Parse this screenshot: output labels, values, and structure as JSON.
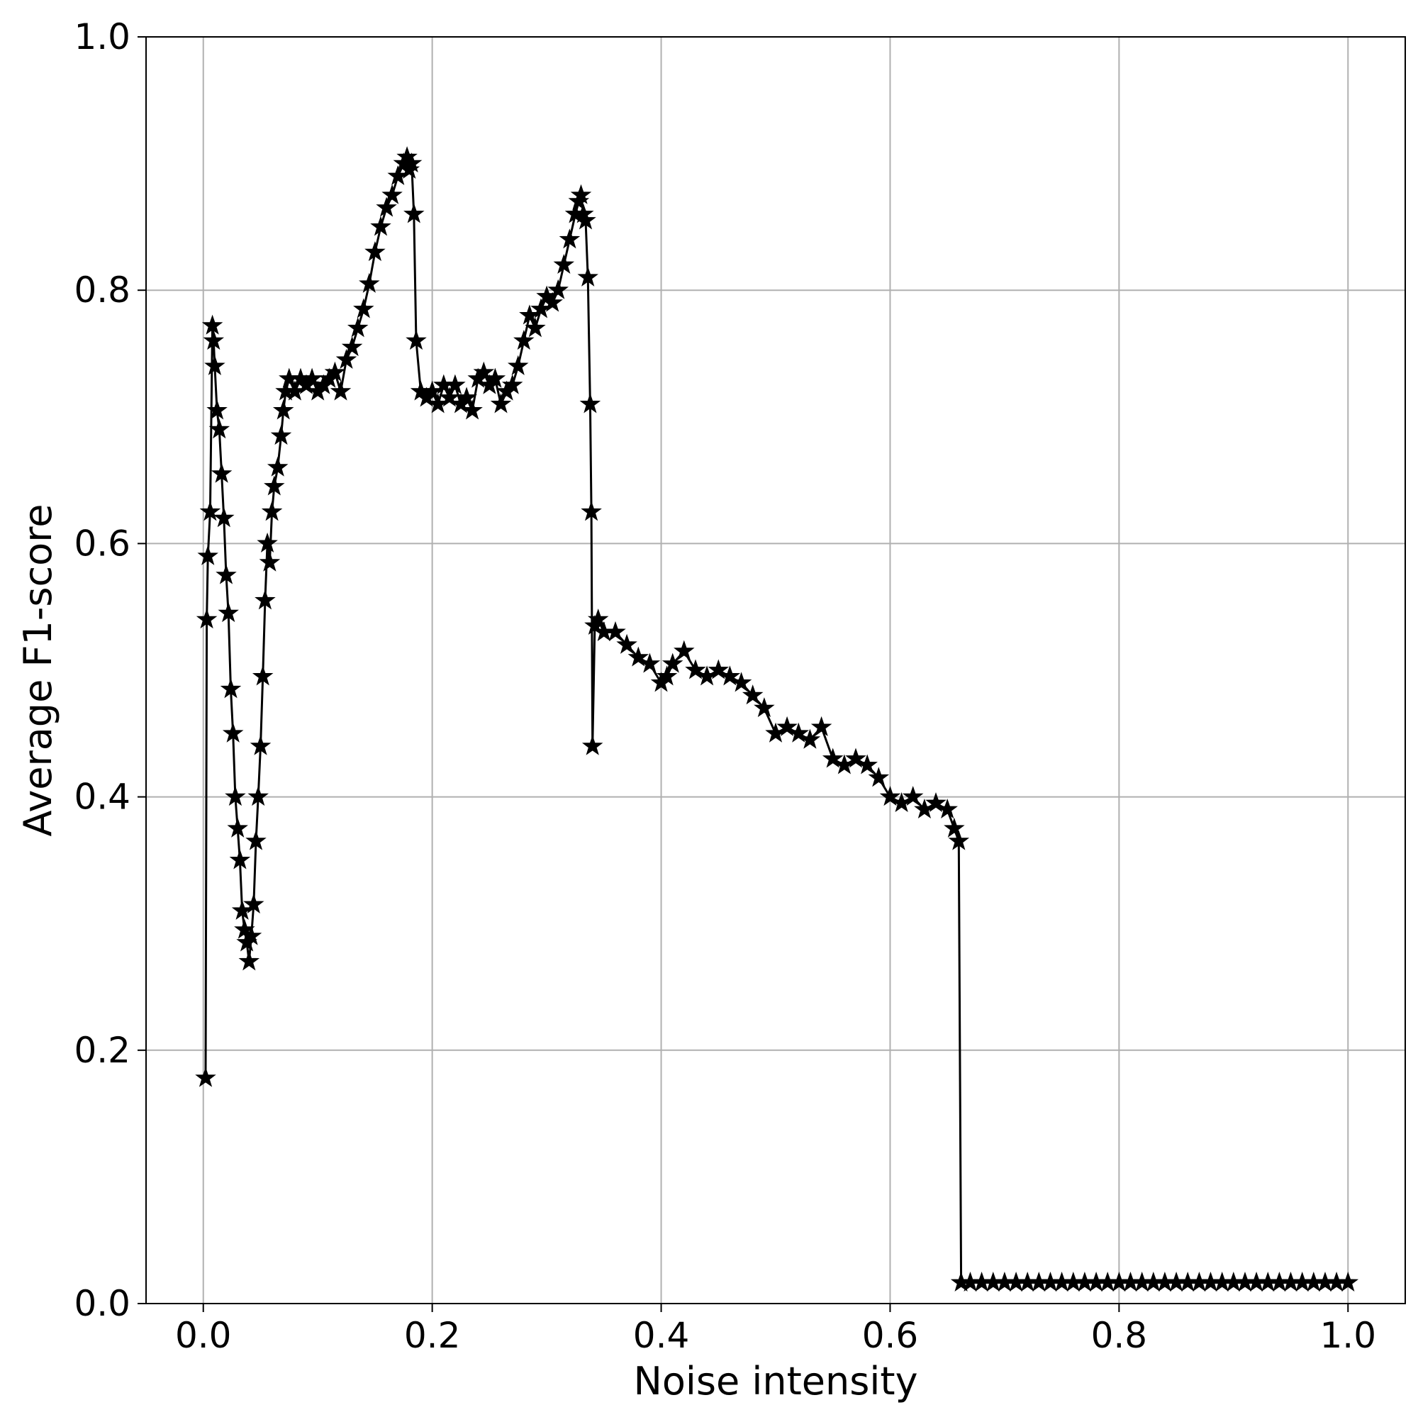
{
  "chart_data": {
    "type": "line",
    "title": "",
    "xlabel": "Noise intensity",
    "ylabel": "Average F1-score",
    "xlim": [
      -0.05,
      1.05
    ],
    "ylim": [
      0.0,
      1.0
    ],
    "grid": true,
    "legend": "none",
    "marker": "star",
    "line_color": "#000000",
    "grid_color": "#b0b0b0",
    "x_ticks": [
      0.0,
      0.2,
      0.4,
      0.6,
      0.8,
      1.0
    ],
    "x_tick_labels": [
      "0.0",
      "0.2",
      "0.4",
      "0.6",
      "0.8",
      "1.0"
    ],
    "y_ticks": [
      0.0,
      0.2,
      0.4,
      0.6,
      0.8,
      1.0
    ],
    "y_tick_labels": [
      "0.0",
      "0.2",
      "0.4",
      "0.6",
      "0.8",
      "1.0"
    ],
    "series": [
      {
        "x": [
          0.002,
          0.003,
          0.004,
          0.006,
          0.008,
          0.009,
          0.01,
          0.012,
          0.014,
          0.016,
          0.018,
          0.02,
          0.022,
          0.024,
          0.026,
          0.028,
          0.03,
          0.032,
          0.034,
          0.036,
          0.038,
          0.04,
          0.042,
          0.044,
          0.046,
          0.048,
          0.05,
          0.052,
          0.054,
          0.056,
          0.058,
          0.06,
          0.062,
          0.065,
          0.068,
          0.07,
          0.072,
          0.075,
          0.08,
          0.085,
          0.09,
          0.095,
          0.1,
          0.105,
          0.11,
          0.115,
          0.12,
          0.125,
          0.13,
          0.135,
          0.14,
          0.145,
          0.15,
          0.155,
          0.16,
          0.165,
          0.17,
          0.175,
          0.178,
          0.18,
          0.182,
          0.184,
          0.186,
          0.19,
          0.195,
          0.2,
          0.205,
          0.21,
          0.215,
          0.22,
          0.225,
          0.23,
          0.235,
          0.24,
          0.245,
          0.25,
          0.255,
          0.26,
          0.265,
          0.27,
          0.275,
          0.28,
          0.285,
          0.29,
          0.295,
          0.3,
          0.305,
          0.31,
          0.315,
          0.32,
          0.325,
          0.328,
          0.33,
          0.332,
          0.334,
          0.336,
          0.338,
          0.339,
          0.34,
          0.342,
          0.345,
          0.35,
          0.36,
          0.37,
          0.38,
          0.39,
          0.4,
          0.405,
          0.41,
          0.42,
          0.43,
          0.44,
          0.45,
          0.46,
          0.47,
          0.48,
          0.49,
          0.5,
          0.51,
          0.52,
          0.53,
          0.54,
          0.55,
          0.56,
          0.57,
          0.58,
          0.59,
          0.6,
          0.61,
          0.62,
          0.63,
          0.64,
          0.65,
          0.656,
          0.66,
          0.662,
          0.67,
          0.68,
          0.69,
          0.7,
          0.71,
          0.72,
          0.73,
          0.74,
          0.75,
          0.76,
          0.77,
          0.78,
          0.79,
          0.8,
          0.81,
          0.82,
          0.83,
          0.84,
          0.85,
          0.86,
          0.87,
          0.88,
          0.89,
          0.9,
          0.91,
          0.92,
          0.93,
          0.94,
          0.95,
          0.96,
          0.97,
          0.98,
          0.99,
          1.0
        ],
        "y": [
          0.178,
          0.54,
          0.59,
          0.625,
          0.772,
          0.76,
          0.74,
          0.705,
          0.69,
          0.655,
          0.62,
          0.575,
          0.545,
          0.485,
          0.45,
          0.4,
          0.375,
          0.35,
          0.31,
          0.295,
          0.285,
          0.27,
          0.29,
          0.315,
          0.365,
          0.4,
          0.44,
          0.495,
          0.555,
          0.6,
          0.585,
          0.625,
          0.645,
          0.66,
          0.685,
          0.705,
          0.72,
          0.73,
          0.72,
          0.73,
          0.725,
          0.73,
          0.72,
          0.725,
          0.73,
          0.735,
          0.72,
          0.745,
          0.755,
          0.77,
          0.785,
          0.805,
          0.83,
          0.85,
          0.865,
          0.875,
          0.89,
          0.9,
          0.905,
          0.895,
          0.9,
          0.86,
          0.76,
          0.72,
          0.715,
          0.72,
          0.71,
          0.725,
          0.715,
          0.725,
          0.71,
          0.715,
          0.705,
          0.73,
          0.735,
          0.725,
          0.73,
          0.71,
          0.72,
          0.725,
          0.74,
          0.76,
          0.78,
          0.77,
          0.785,
          0.795,
          0.79,
          0.8,
          0.82,
          0.84,
          0.86,
          0.87,
          0.875,
          0.86,
          0.855,
          0.81,
          0.71,
          0.625,
          0.44,
          0.535,
          0.54,
          0.53,
          0.53,
          0.52,
          0.51,
          0.505,
          0.49,
          0.495,
          0.505,
          0.515,
          0.5,
          0.495,
          0.5,
          0.495,
          0.49,
          0.48,
          0.47,
          0.45,
          0.455,
          0.45,
          0.445,
          0.455,
          0.43,
          0.425,
          0.43,
          0.425,
          0.415,
          0.4,
          0.395,
          0.4,
          0.39,
          0.395,
          0.39,
          0.375,
          0.365,
          0.0165,
          0.0165,
          0.0165,
          0.0165,
          0.0165,
          0.0165,
          0.0165,
          0.0165,
          0.0165,
          0.0165,
          0.0165,
          0.0165,
          0.0165,
          0.0165,
          0.0165,
          0.0165,
          0.0165,
          0.0165,
          0.0165,
          0.0165,
          0.0165,
          0.0165,
          0.0165,
          0.0165,
          0.0165,
          0.0165,
          0.0165,
          0.0165,
          0.0165,
          0.0165,
          0.0165,
          0.0165,
          0.0165,
          0.0165,
          0.0165
        ]
      }
    ]
  }
}
